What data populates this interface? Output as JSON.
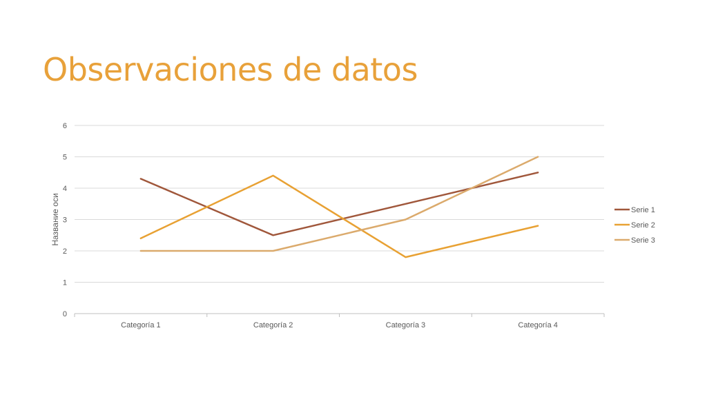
{
  "slide": {
    "title": "Observaciones de datos"
  },
  "colors": {
    "title": "#E8A13A",
    "gridline": "#D9D9D9",
    "axis_line": "#BFBFBF",
    "text": "#595959"
  },
  "chart_data": {
    "type": "line",
    "title": "",
    "xlabel": "",
    "ylabel": "Название оси",
    "categories": [
      "Categoría 1",
      "Categoría 2",
      "Categoría 3",
      "Categoría 4"
    ],
    "ylim": [
      0,
      6
    ],
    "yticks": [
      0,
      1,
      2,
      3,
      4,
      5,
      6
    ],
    "grid": true,
    "legend_position": "right",
    "series": [
      {
        "name": "Serie 1",
        "values": [
          4.3,
          2.5,
          3.5,
          4.5
        ],
        "color": "#A0573B"
      },
      {
        "name": "Serie 2",
        "values": [
          2.4,
          4.4,
          1.8,
          2.8
        ],
        "color": "#E8A133"
      },
      {
        "name": "Serie 3",
        "values": [
          2.0,
          2.0,
          3.0,
          5.0
        ],
        "color": "#DBAA6C"
      }
    ]
  }
}
